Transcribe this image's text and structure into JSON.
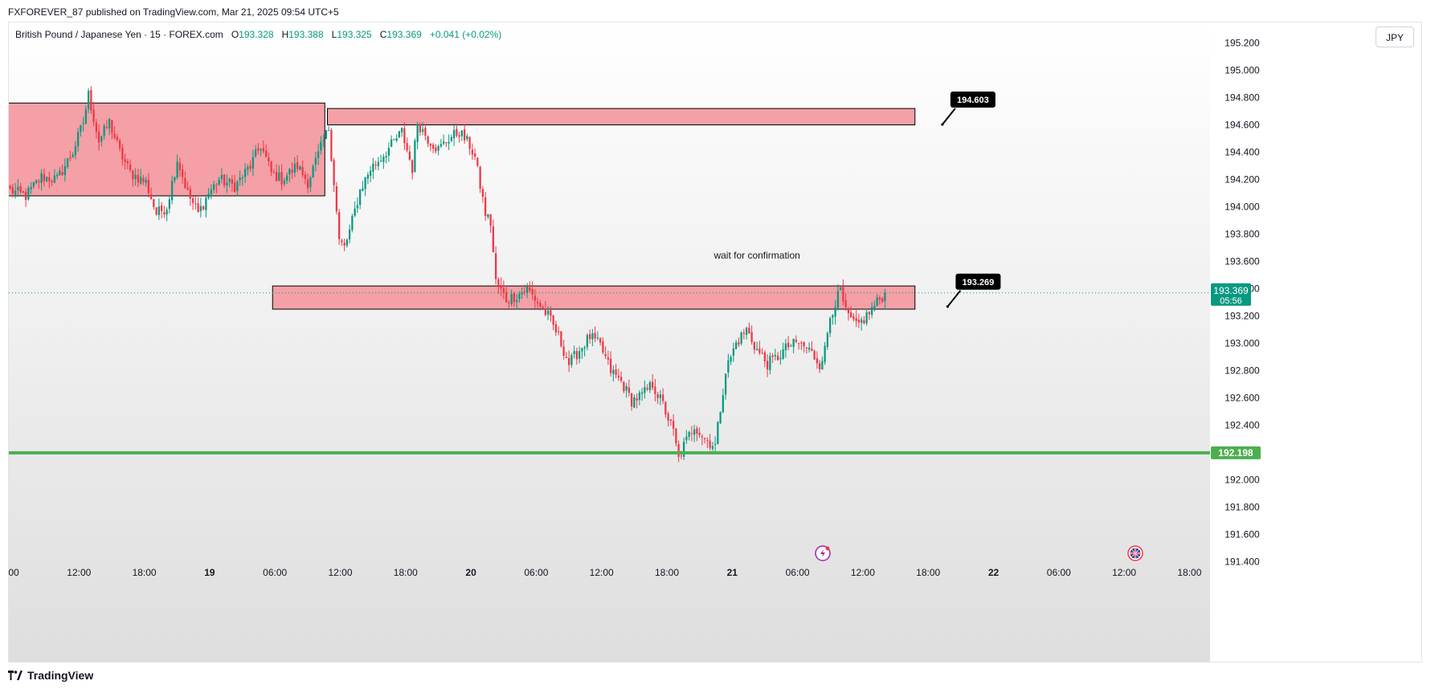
{
  "header": {
    "published_by": "FXFOREVER_87 published on TradingView.com, Mar 21, 2025 09:54 UTC+5"
  },
  "legend": {
    "symbol": "British Pound / Japanese Yen · 15 · FOREX.com",
    "o_label": "O",
    "o_value": "193.328",
    "h_label": "H",
    "h_value": "193.388",
    "l_label": "L",
    "l_value": "193.325",
    "c_label": "C",
    "c_value": "193.369",
    "change": "+0.041 (+0.02%)"
  },
  "currency_button": "JPY",
  "footer": {
    "brand": "TradingView"
  },
  "colors": {
    "up": "#089981",
    "down": "#f23645",
    "zone_fill": "#f4a0a6",
    "zone_border": "#000000",
    "support_line": "#4caf50",
    "price_badge": "#089981",
    "callout_bg": "#000000"
  },
  "chart_data": {
    "type": "candlestick",
    "ylim": [
      191.35,
      195.35
    ],
    "price_scale_ticks": [
      "195.200",
      "195.000",
      "194.800",
      "194.600",
      "194.400",
      "194.200",
      "194.000",
      "193.800",
      "193.600",
      "193.400",
      "193.200",
      "193.000",
      "192.800",
      "192.600",
      "192.400",
      "192.200",
      "192.000",
      "191.800",
      "191.600",
      "191.400"
    ],
    "time_ticks": [
      {
        "label": "00",
        "bold": false
      },
      {
        "label": "12:00",
        "bold": false
      },
      {
        "label": "18:00",
        "bold": false
      },
      {
        "label": "19",
        "bold": true
      },
      {
        "label": "06:00",
        "bold": false
      },
      {
        "label": "12:00",
        "bold": false
      },
      {
        "label": "18:00",
        "bold": false
      },
      {
        "label": "20",
        "bold": true
      },
      {
        "label": "06:00",
        "bold": false
      },
      {
        "label": "12:00",
        "bold": false
      },
      {
        "label": "18:00",
        "bold": false
      },
      {
        "label": "21",
        "bold": true
      },
      {
        "label": "06:00",
        "bold": false
      },
      {
        "label": "12:00",
        "bold": false
      },
      {
        "label": "18:00",
        "bold": false
      },
      {
        "label": "22",
        "bold": true
      },
      {
        "label": "06:00",
        "bold": false
      },
      {
        "label": "12:00",
        "bold": false
      },
      {
        "label": "18:00",
        "bold": false
      }
    ],
    "anchors": [
      [
        0,
        194.12
      ],
      [
        6,
        194.08
      ],
      [
        12,
        194.22
      ],
      [
        18,
        194.2
      ],
      [
        24,
        194.4
      ],
      [
        28,
        194.62
      ],
      [
        30,
        194.82
      ],
      [
        34,
        194.48
      ],
      [
        38,
        194.62
      ],
      [
        42,
        194.4
      ],
      [
        46,
        194.25
      ],
      [
        52,
        194.18
      ],
      [
        56,
        193.95
      ],
      [
        60,
        194.0
      ],
      [
        64,
        194.35
      ],
      [
        68,
        194.1
      ],
      [
        72,
        193.95
      ],
      [
        76,
        194.1
      ],
      [
        80,
        194.2
      ],
      [
        86,
        194.15
      ],
      [
        92,
        194.3
      ],
      [
        96,
        194.45
      ],
      [
        100,
        194.25
      ],
      [
        104,
        194.2
      ],
      [
        110,
        194.3
      ],
      [
        114,
        194.18
      ],
      [
        118,
        194.38
      ],
      [
        122,
        194.58
      ],
      [
        124,
        194.18
      ],
      [
        126,
        193.75
      ],
      [
        128,
        193.7
      ],
      [
        130,
        193.82
      ],
      [
        134,
        194.12
      ],
      [
        138,
        194.28
      ],
      [
        142,
        194.36
      ],
      [
        146,
        194.45
      ],
      [
        150,
        194.55
      ],
      [
        154,
        194.28
      ],
      [
        156,
        194.62
      ],
      [
        160,
        194.5
      ],
      [
        164,
        194.42
      ],
      [
        168,
        194.5
      ],
      [
        172,
        194.55
      ],
      [
        176,
        194.45
      ],
      [
        178,
        194.36
      ],
      [
        182,
        193.95
      ],
      [
        184,
        193.88
      ],
      [
        186,
        193.45
      ],
      [
        190,
        193.32
      ],
      [
        194,
        193.35
      ],
      [
        198,
        193.4
      ],
      [
        200,
        193.35
      ],
      [
        202,
        193.3
      ],
      [
        206,
        193.2
      ],
      [
        210,
        193.05
      ],
      [
        214,
        192.85
      ],
      [
        218,
        192.95
      ],
      [
        222,
        193.05
      ],
      [
        226,
        192.98
      ],
      [
        230,
        192.8
      ],
      [
        234,
        192.72
      ],
      [
        238,
        192.58
      ],
      [
        242,
        192.62
      ],
      [
        246,
        192.7
      ],
      [
        250,
        192.55
      ],
      [
        254,
        192.35
      ],
      [
        256,
        192.15
      ],
      [
        258,
        192.25
      ],
      [
        262,
        192.4
      ],
      [
        266,
        192.3
      ],
      [
        270,
        192.25
      ],
      [
        274,
        192.8
      ],
      [
        278,
        193.0
      ],
      [
        282,
        193.1
      ],
      [
        286,
        192.95
      ],
      [
        290,
        192.85
      ],
      [
        294,
        192.9
      ],
      [
        298,
        192.98
      ],
      [
        302,
        193.0
      ],
      [
        306,
        192.95
      ],
      [
        310,
        192.85
      ],
      [
        312,
        192.95
      ],
      [
        314,
        193.2
      ],
      [
        316,
        193.3
      ],
      [
        318,
        193.38
      ],
      [
        320,
        193.22
      ],
      [
        324,
        193.12
      ],
      [
        328,
        193.2
      ],
      [
        332,
        193.3
      ],
      [
        335,
        193.37
      ]
    ],
    "last_candle_index": 335,
    "total_slots": 460,
    "zones": [
      {
        "top": 194.76,
        "bottom": 194.08,
        "start_index": -2,
        "end_index": 120
      },
      {
        "top": 194.72,
        "bottom": 194.6,
        "start_index": 122,
        "end_index": 346
      },
      {
        "top": 193.42,
        "bottom": 193.25,
        "start_index": 101,
        "end_index": 346
      }
    ],
    "callouts": [
      {
        "text": "194.603",
        "price": 194.603,
        "index": 357
      },
      {
        "text": "193.269",
        "price": 193.269,
        "index": 359
      }
    ],
    "annotations": [
      {
        "text": "wait for confirmation",
        "index": 286,
        "price": 193.62
      }
    ],
    "support_line": {
      "price": 192.198,
      "label": "192.198"
    },
    "current_price": {
      "price": 193.369,
      "label": "193.369",
      "countdown": "05:56"
    }
  }
}
